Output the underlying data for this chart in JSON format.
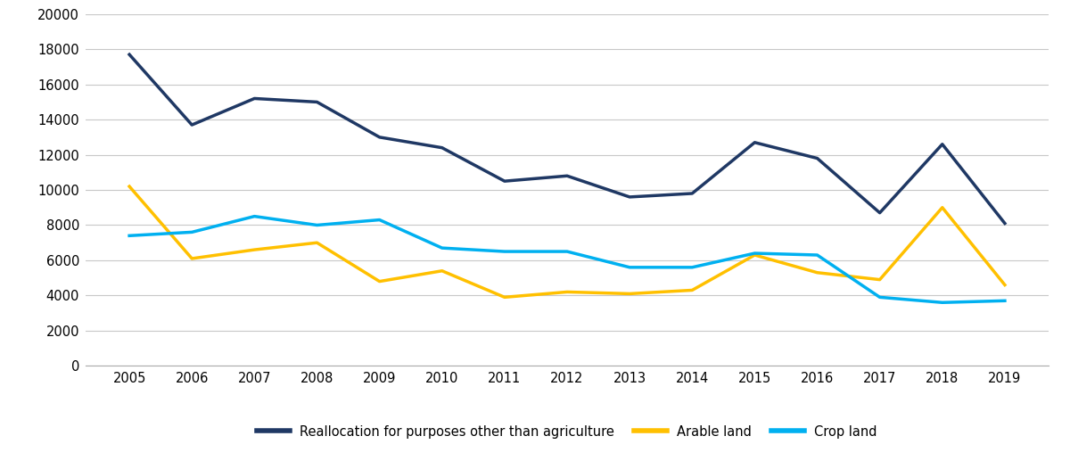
{
  "years": [
    2005,
    2006,
    2007,
    2008,
    2009,
    2010,
    2011,
    2012,
    2013,
    2014,
    2015,
    2016,
    2017,
    2018,
    2019
  ],
  "reallocation": [
    17700,
    13700,
    15200,
    15000,
    13000,
    12400,
    10500,
    10800,
    9600,
    9800,
    12700,
    11800,
    8700,
    12600,
    8100
  ],
  "arable": [
    10200,
    6100,
    6600,
    7000,
    4800,
    5400,
    3900,
    4200,
    4100,
    4300,
    6300,
    5300,
    4900,
    9000,
    4600
  ],
  "cropland": [
    7400,
    7600,
    8500,
    8000,
    8300,
    6700,
    6500,
    6500,
    5600,
    5600,
    6400,
    6300,
    3900,
    3600,
    3700
  ],
  "reallocation_color": "#1f3864",
  "arable_color": "#ffc000",
  "cropland_color": "#00b0f0",
  "legend_labels": [
    "Reallocation for purposes other than agriculture",
    "Arable land",
    "Crop land"
  ],
  "ylim": [
    0,
    20000
  ],
  "yticks": [
    0,
    2000,
    4000,
    6000,
    8000,
    10000,
    12000,
    14000,
    16000,
    18000,
    20000
  ],
  "background_color": "#ffffff",
  "grid_color": "#c8c8c8",
  "line_width": 2.5
}
